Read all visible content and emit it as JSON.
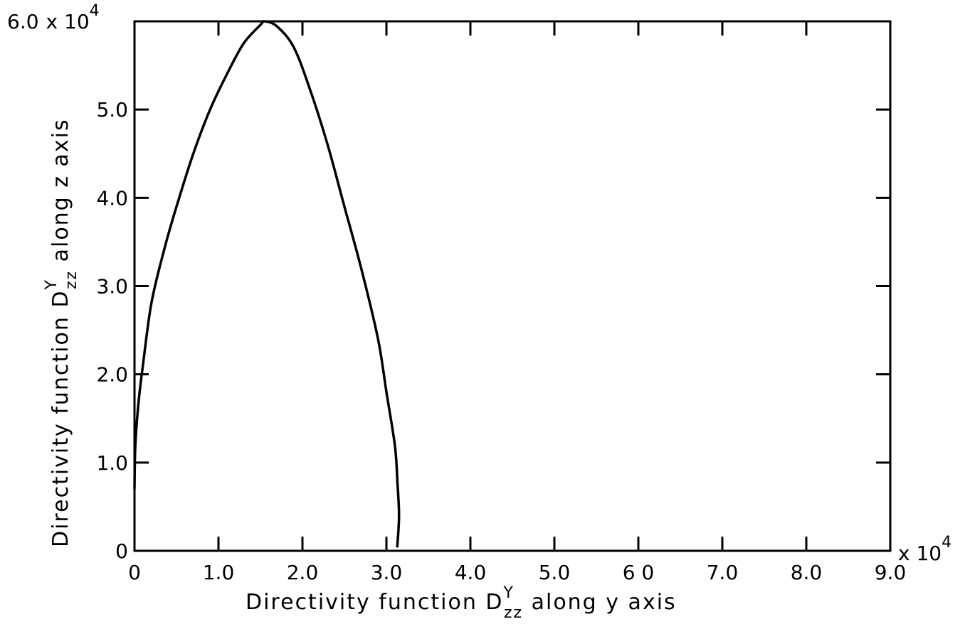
{
  "chart_data": {
    "type": "line",
    "xlabel": {
      "prefix": "Directivity  function  ",
      "symbol": "D",
      "superscript": "Y",
      "subscript": "zz",
      "suffix": "  along  y axis"
    },
    "ylabel": {
      "prefix": "Directivity  function  ",
      "symbol": "D",
      "superscript": "Y",
      "subscript": "zz",
      "suffix": "  along  z axis"
    },
    "x_multiplier": "x 10",
    "x_multiplier_exp": "4",
    "y_multiplier": "x 10",
    "y_multiplier_exp": "4",
    "xlim": [
      0,
      9.0
    ],
    "ylim": [
      0,
      6.0
    ],
    "x_ticks": [
      0,
      1.0,
      2.0,
      3.0,
      4.0,
      5.0,
      6.0,
      7.0,
      8.0,
      9.0
    ],
    "x_tick_labels": [
      "0",
      "1.0",
      "2.0",
      "3.0",
      "4.0",
      "5.0",
      "6 0",
      "7.0",
      "8.0",
      "9.0"
    ],
    "y_ticks": [
      0,
      1.0,
      2.0,
      3.0,
      4.0,
      5.0,
      6.0
    ],
    "y_tick_labels": [
      "0",
      "1.0",
      "2.0",
      "3.0",
      "4.0",
      "5.0",
      "6.0"
    ],
    "grid": false,
    "series": [
      {
        "color": "#000000",
        "points": [
          [
            0.0,
            0.7
          ],
          [
            0.01,
            1.2
          ],
          [
            0.05,
            1.7
          ],
          [
            0.1,
            2.1
          ],
          [
            0.2,
            2.8
          ],
          [
            0.35,
            3.4
          ],
          [
            0.5,
            3.9
          ],
          [
            0.7,
            4.5
          ],
          [
            0.9,
            5.0
          ],
          [
            1.1,
            5.4
          ],
          [
            1.3,
            5.75
          ],
          [
            1.5,
            5.96
          ],
          [
            1.55,
            6.0
          ],
          [
            1.7,
            5.94
          ],
          [
            1.9,
            5.7
          ],
          [
            2.1,
            5.2
          ],
          [
            2.3,
            4.6
          ],
          [
            2.5,
            3.9
          ],
          [
            2.7,
            3.2
          ],
          [
            2.9,
            2.4
          ],
          [
            3.0,
            1.8
          ],
          [
            3.1,
            1.2
          ],
          [
            3.13,
            0.8
          ],
          [
            3.15,
            0.4
          ],
          [
            3.13,
            0.05
          ]
        ]
      }
    ]
  }
}
